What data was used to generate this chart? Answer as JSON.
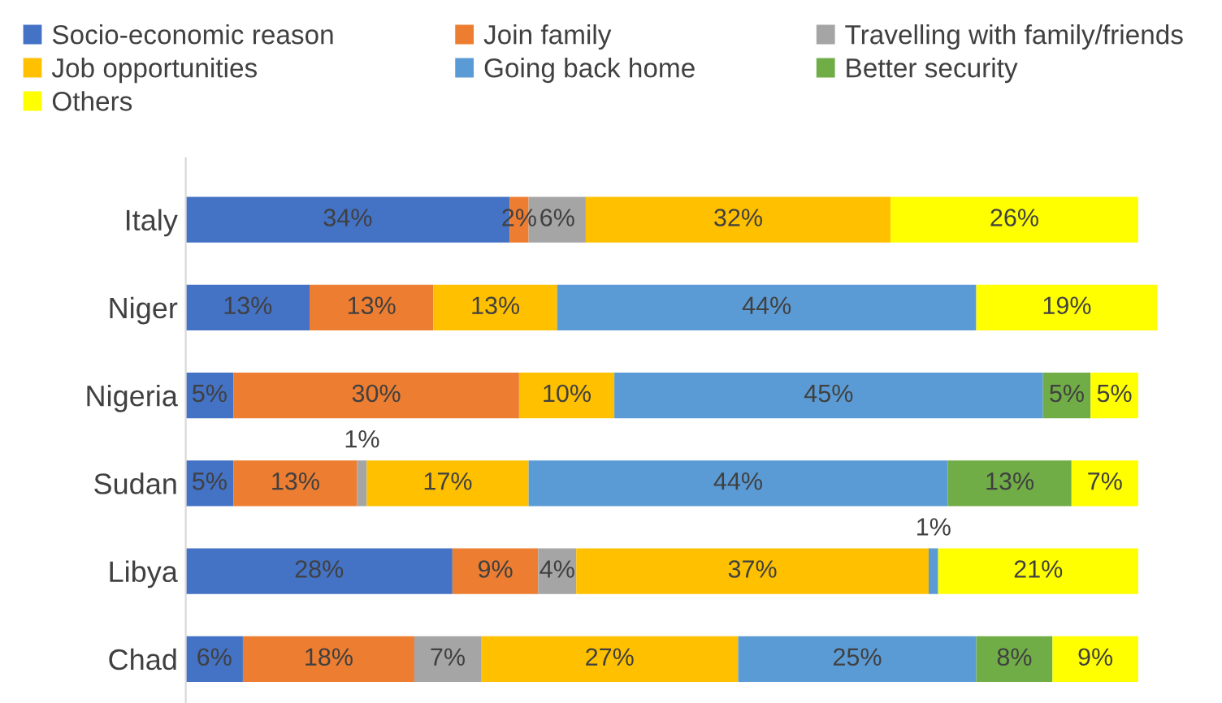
{
  "chart_data": {
    "type": "bar",
    "orientation": "horizontal",
    "stacked": true,
    "legend": "top",
    "grid": false,
    "categories": [
      "Italy",
      "Niger",
      "Nigeria",
      "Sudan",
      "Libya",
      "Chad"
    ],
    "series": [
      {
        "name": "Socio-economic reason",
        "color": "#4472c4",
        "values": [
          34,
          13,
          5,
          5,
          28,
          6
        ],
        "value_labels": [
          "34%",
          "13%",
          "5%",
          "5%",
          "28%",
          "6%"
        ]
      },
      {
        "name": "Join family",
        "color": "#ed7d31",
        "values": [
          2,
          13,
          30,
          13,
          9,
          18
        ],
        "value_labels": [
          "2%",
          "13%",
          "30%",
          "13%",
          "9%",
          "18%"
        ]
      },
      {
        "name": "Travelling with family/friends",
        "color": "#a5a5a5",
        "values": [
          6,
          null,
          null,
          1,
          4,
          7
        ],
        "value_labels": [
          "6%",
          null,
          null,
          "1%",
          "4%",
          "7%"
        ]
      },
      {
        "name": "Job opportunities",
        "color": "#ffc000",
        "values": [
          32,
          13,
          10,
          17,
          37,
          27
        ],
        "value_labels": [
          "32%",
          "13%",
          "10%",
          "17%",
          "37%",
          "27%"
        ]
      },
      {
        "name": "Going back home",
        "color": "#5b9bd5",
        "values": [
          null,
          44,
          45,
          44,
          1,
          25
        ],
        "value_labels": [
          null,
          "44%",
          "45%",
          "44%",
          "1%",
          "25%"
        ]
      },
      {
        "name": "Better security",
        "color": "#70ad47",
        "values": [
          null,
          null,
          5,
          13,
          null,
          8
        ],
        "value_labels": [
          null,
          null,
          "5%",
          "13%",
          null,
          "8%"
        ]
      },
      {
        "name": "Others",
        "color": "#ffff00",
        "values": [
          26,
          19,
          5,
          7,
          21,
          9
        ],
        "value_labels": [
          "26%",
          "19%",
          "5%",
          "7%",
          "21%",
          "9%"
        ]
      }
    ]
  }
}
